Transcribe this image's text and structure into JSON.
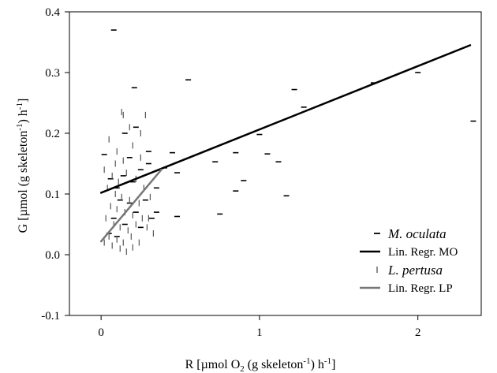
{
  "chart_data": {
    "type": "scatter",
    "xlabel": {
      "prefix": "R [µmol O",
      "sub1": "2",
      "mid": " (g skeleton",
      "sup": "-1",
      "suffix": ") h",
      "sup2": "-1",
      "end": "]"
    },
    "ylabel": {
      "prefix": "G [µmol (g skeleton",
      "sup": "-1",
      "mid": ") h",
      "sup2": "-1",
      "end": "]"
    },
    "xlim": [
      -0.2,
      2.4
    ],
    "ylim": [
      -0.1,
      0.4
    ],
    "xticks": [
      0,
      1,
      2
    ],
    "yticks": [
      -0.1,
      0.0,
      0.1,
      0.2,
      0.3,
      0.4
    ],
    "ytick_labels": [
      "-0.1",
      "0.0",
      "0.1",
      "0.2",
      "0.3",
      "0.4"
    ],
    "grid": false,
    "legend_placement": "bottom-right",
    "series": [
      {
        "name": "M. oculata",
        "marker": "horizontal-dash",
        "color": "#000000",
        "points": [
          [
            0.08,
            0.37
          ],
          [
            0.21,
            0.275
          ],
          [
            0.55,
            0.288
          ],
          [
            1.22,
            0.272
          ],
          [
            1.28,
            0.243
          ],
          [
            1.72,
            0.283
          ],
          [
            2.0,
            0.3
          ],
          [
            2.35,
            0.22
          ],
          [
            0.02,
            0.165
          ],
          [
            0.15,
            0.2
          ],
          [
            0.22,
            0.21
          ],
          [
            0.3,
            0.17
          ],
          [
            0.18,
            0.16
          ],
          [
            0.25,
            0.14
          ],
          [
            0.06,
            0.125
          ],
          [
            0.1,
            0.11
          ],
          [
            0.14,
            0.13
          ],
          [
            0.2,
            0.12
          ],
          [
            0.3,
            0.15
          ],
          [
            0.35,
            0.11
          ],
          [
            0.12,
            0.09
          ],
          [
            0.18,
            0.085
          ],
          [
            0.22,
            0.07
          ],
          [
            0.28,
            0.09
          ],
          [
            0.08,
            0.06
          ],
          [
            0.15,
            0.05
          ],
          [
            0.25,
            0.045
          ],
          [
            0.05,
            0.035
          ],
          [
            0.35,
            0.07
          ],
          [
            0.45,
            0.168
          ],
          [
            0.48,
            0.135
          ],
          [
            0.48,
            0.063
          ],
          [
            0.72,
            0.153
          ],
          [
            0.75,
            0.067
          ],
          [
            0.85,
            0.168
          ],
          [
            0.85,
            0.105
          ],
          [
            0.9,
            0.122
          ],
          [
            1.0,
            0.198
          ],
          [
            1.05,
            0.166
          ],
          [
            1.12,
            0.153
          ],
          [
            1.17,
            0.097
          ],
          [
            0.4,
            0.143
          ],
          [
            0.32,
            0.06
          ],
          [
            0.1,
            0.03
          ]
        ]
      },
      {
        "name": "Lin. Regr. MO",
        "line": [
          [
            0.0,
            0.102
          ],
          [
            2.33,
            0.345
          ]
        ],
        "color": "#000000",
        "width": 2.5
      },
      {
        "name": "L. pertusa",
        "marker": "vertical-dash",
        "color": "#555555",
        "points": [
          [
            0.13,
            0.235
          ],
          [
            0.18,
            0.21
          ],
          [
            0.28,
            0.23
          ],
          [
            0.25,
            0.2
          ],
          [
            0.05,
            0.19
          ],
          [
            0.1,
            0.17
          ],
          [
            0.14,
            0.155
          ],
          [
            0.2,
            0.18
          ],
          [
            0.25,
            0.16
          ],
          [
            0.02,
            0.14
          ],
          [
            0.07,
            0.13
          ],
          [
            0.11,
            0.12
          ],
          [
            0.16,
            0.135
          ],
          [
            0.22,
            0.125
          ],
          [
            0.27,
            0.11
          ],
          [
            0.04,
            0.11
          ],
          [
            0.09,
            0.1
          ],
          [
            0.13,
            0.095
          ],
          [
            0.18,
            0.09
          ],
          [
            0.24,
            0.085
          ],
          [
            0.31,
            0.095
          ],
          [
            0.06,
            0.08
          ],
          [
            0.1,
            0.075
          ],
          [
            0.15,
            0.07
          ],
          [
            0.2,
            0.065
          ],
          [
            0.26,
            0.06
          ],
          [
            0.03,
            0.06
          ],
          [
            0.08,
            0.05
          ],
          [
            0.12,
            0.045
          ],
          [
            0.17,
            0.04
          ],
          [
            0.22,
            0.05
          ],
          [
            0.29,
            0.045
          ],
          [
            0.05,
            0.03
          ],
          [
            0.1,
            0.025
          ],
          [
            0.14,
            0.02
          ],
          [
            0.19,
            0.03
          ],
          [
            0.24,
            0.02
          ],
          [
            0.02,
            0.02
          ],
          [
            0.07,
            0.015
          ],
          [
            0.12,
            0.01
          ],
          [
            0.16,
            0.005
          ],
          [
            0.2,
            0.012
          ],
          [
            0.33,
            0.035
          ],
          [
            0.3,
            0.06
          ],
          [
            0.14,
            0.23
          ],
          [
            0.09,
            0.15
          ]
        ]
      },
      {
        "name": "Lin. Regr. LP",
        "line": [
          [
            0.0,
            0.022
          ],
          [
            0.38,
            0.14
          ]
        ],
        "color": "#777777",
        "width": 2.5
      }
    ]
  }
}
